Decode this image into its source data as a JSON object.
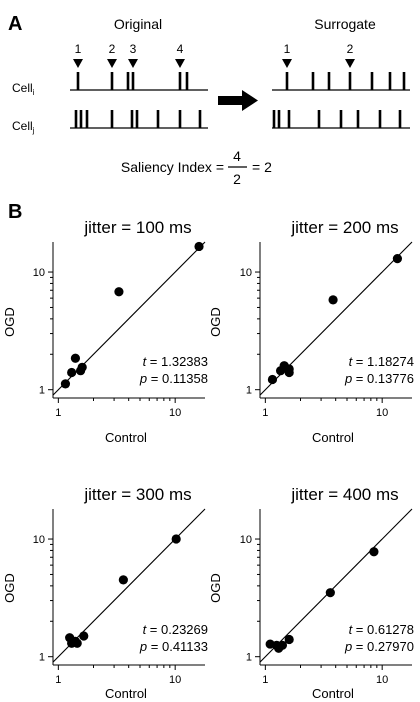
{
  "panel_a": {
    "letter": "A",
    "original_title": "Original",
    "surrogate_title": "Surrogate",
    "cell_i_base": "Cell",
    "cell_i_sub": "i",
    "cell_j_base": "Cell",
    "cell_j_sub": "j",
    "original_markers": [
      "1",
      "2",
      "3",
      "4"
    ],
    "surrogate_markers": [
      "1",
      "2"
    ],
    "saliency_label": "Saliency Index =",
    "saliency_numerator": "4",
    "saliency_denominator": "2",
    "saliency_result": "= 2"
  },
  "panel_b": {
    "letter": "B"
  },
  "chart_data": [
    {
      "type": "scatter",
      "title": "jitter = 100 ms",
      "xlabel": "Control",
      "ylabel": "OGD",
      "xscale": "log",
      "yscale": "log",
      "xlim": [
        0.9,
        18
      ],
      "ylim": [
        0.85,
        18
      ],
      "xticks": [
        "1",
        "10"
      ],
      "yticks": [
        "1",
        "10"
      ],
      "x": [
        1.15,
        1.3,
        1.4,
        1.55,
        1.6,
        3.3,
        16.0
      ],
      "y": [
        1.12,
        1.4,
        1.85,
        1.45,
        1.55,
        6.8,
        16.5
      ],
      "stat_t_label": "t",
      "stat_t_value": "= 1.32383",
      "stat_p_label": "p",
      "stat_p_value": "= 0.11358"
    },
    {
      "type": "scatter",
      "title": "jitter = 200 ms",
      "xlabel": "Control",
      "ylabel": "OGD",
      "xscale": "log",
      "yscale": "log",
      "xlim": [
        0.9,
        18
      ],
      "ylim": [
        0.85,
        18
      ],
      "xticks": [
        "1",
        "10"
      ],
      "yticks": [
        "1",
        "10"
      ],
      "x": [
        1.15,
        1.35,
        1.45,
        1.6,
        1.6,
        3.8,
        13.5
      ],
      "y": [
        1.22,
        1.45,
        1.6,
        1.4,
        1.5,
        5.8,
        13.0
      ],
      "stat_t_label": "t",
      "stat_t_value": "= 1.18274",
      "stat_p_label": "p",
      "stat_p_value": "= 0.13776"
    },
    {
      "type": "scatter",
      "title": "jitter = 300 ms",
      "xlabel": "Control",
      "ylabel": "OGD",
      "xscale": "log",
      "yscale": "log",
      "xlim": [
        0.9,
        18
      ],
      "ylim": [
        0.85,
        18
      ],
      "xticks": [
        "1",
        "10"
      ],
      "yticks": [
        "1",
        "10"
      ],
      "x": [
        1.25,
        1.3,
        1.4,
        1.45,
        1.65,
        3.6,
        10.2
      ],
      "y": [
        1.45,
        1.3,
        1.35,
        1.3,
        1.5,
        4.5,
        10.0
      ],
      "stat_t_label": "t",
      "stat_t_value": "= 0.23269",
      "stat_p_label": "p",
      "stat_p_value": "= 0.41133"
    },
    {
      "type": "scatter",
      "title": "jitter = 400 ms",
      "xlabel": "Control",
      "ylabel": "OGD",
      "xscale": "log",
      "yscale": "log",
      "xlim": [
        0.9,
        18
      ],
      "ylim": [
        0.85,
        18
      ],
      "xticks": [
        "1",
        "10"
      ],
      "yticks": [
        "1",
        "10"
      ],
      "x": [
        1.1,
        1.25,
        1.3,
        1.4,
        1.6,
        3.6,
        8.5
      ],
      "y": [
        1.28,
        1.25,
        1.18,
        1.25,
        1.4,
        3.5,
        7.8
      ],
      "stat_t_label": "t",
      "stat_t_value": "= 0.61278",
      "stat_p_label": "p",
      "stat_p_value": "= 0.27970"
    }
  ]
}
